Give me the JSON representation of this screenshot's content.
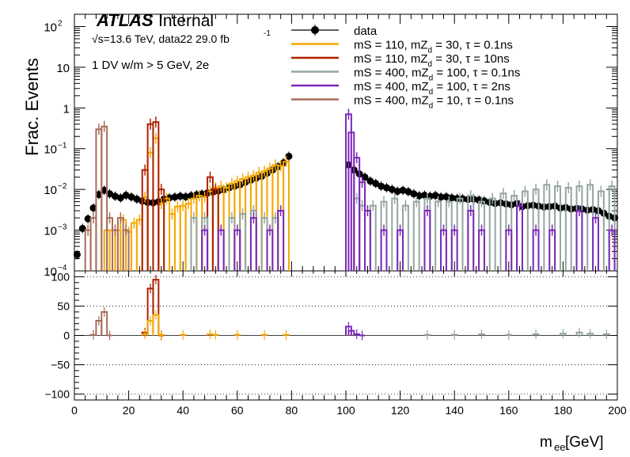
{
  "chart_data": {
    "type": "line",
    "ylabel": "Frac. Events",
    "xlabel_main": "m",
    "xlabel_sub": "ee",
    "xlabel_unit": " [GeV]",
    "xlim": [
      0,
      200
    ],
    "ylim_log": [
      0.0001,
      200
    ],
    "y_log": true,
    "ratio_ylim": [
      -110,
      110
    ],
    "x_ticks": [
      "0",
      "20",
      "40",
      "60",
      "80",
      "100",
      "120",
      "140",
      "160",
      "180",
      "200"
    ],
    "y_ticks": [
      {
        "v": 100,
        "base": "10",
        "exp": "2"
      },
      {
        "v": 10,
        "base": "10",
        "exp": ""
      },
      {
        "v": 1,
        "base": "1",
        "exp": ""
      },
      {
        "v": 0.1,
        "base": "10",
        "exp": "−1"
      },
      {
        "v": 0.01,
        "base": "10",
        "exp": "−2"
      },
      {
        "v": 0.001,
        "base": "10",
        "exp": "−3"
      },
      {
        "v": 0.0001,
        "base": "10",
        "exp": "−4"
      }
    ],
    "ratio_ticks": [
      "100",
      "50",
      "0",
      "−50",
      "−100"
    ],
    "atlas_label": "ATLAS",
    "atlas_status": " Internal",
    "energy_label": "√s=13.6 TeV, data22 29.0 fb",
    "energy_exp": "-1",
    "selection_label": "1 DV w/m > 5 GeV, 2e",
    "series": [
      {
        "name": "data",
        "color": "#000000",
        "style": "points",
        "x": [
          1,
          3,
          5,
          7,
          9,
          11,
          13,
          15,
          17,
          19,
          21,
          23,
          25,
          27,
          29,
          31,
          33,
          35,
          37,
          39,
          41,
          43,
          45,
          47,
          49,
          51,
          53,
          55,
          57,
          59,
          61,
          63,
          65,
          67,
          69,
          71,
          73,
          75,
          77,
          79,
          101,
          103,
          105,
          107,
          109,
          111,
          113,
          115,
          117,
          119,
          121,
          123,
          125,
          127,
          129,
          131,
          133,
          135,
          137,
          139,
          141,
          143,
          145,
          147,
          149,
          151,
          153,
          155,
          157,
          159,
          161,
          163,
          165,
          167,
          169,
          171,
          173,
          175,
          177,
          179,
          181,
          183,
          185,
          187,
          189,
          191,
          193,
          195,
          197,
          199
        ],
        "y": [
          0.00025,
          0.0011,
          0.0019,
          0.0035,
          0.0075,
          0.0095,
          0.0078,
          0.0068,
          0.0062,
          0.0072,
          0.0065,
          0.0058,
          0.0052,
          0.0048,
          0.0047,
          0.005,
          0.0058,
          0.0062,
          0.0065,
          0.0068,
          0.0066,
          0.007,
          0.0074,
          0.0077,
          0.0082,
          0.0087,
          0.0092,
          0.0098,
          0.011,
          0.012,
          0.013,
          0.015,
          0.017,
          0.019,
          0.021,
          0.025,
          0.03,
          0.036,
          0.045,
          0.065,
          0.04,
          0.03,
          0.024,
          0.02,
          0.016,
          0.014,
          0.012,
          0.011,
          0.01,
          0.009,
          0.0095,
          0.0088,
          0.0078,
          0.007,
          0.0072,
          0.0068,
          0.0071,
          0.0065,
          0.0066,
          0.0062,
          0.006,
          0.0059,
          0.0057,
          0.0058,
          0.0055,
          0.0052,
          0.0048,
          0.0045,
          0.0047,
          0.0044,
          0.0042,
          0.0045,
          0.0038,
          0.004,
          0.0041,
          0.0039,
          0.0037,
          0.0038,
          0.0039,
          0.0035,
          0.0036,
          0.0033,
          0.0034,
          0.0033,
          0.0031,
          0.0032,
          0.003,
          0.0026,
          0.0022,
          0.002
        ]
      },
      {
        "name": "mS = 110, mZd = 30, τ = 0.1ns",
        "color": "#f5a800",
        "style": "step",
        "x": [
          12,
          14,
          16,
          18,
          20,
          22,
          24,
          26,
          28,
          30,
          32,
          34,
          36,
          38,
          40,
          42,
          44,
          46,
          48,
          50,
          52,
          54,
          56,
          58,
          60,
          62,
          64,
          66,
          68,
          70,
          72,
          74,
          76,
          78
        ],
        "y": [
          0.001,
          0.001,
          0.001,
          0.0018,
          0.0009,
          0.0015,
          0.0018,
          0.0065,
          0.08,
          0.18,
          0.0045,
          0.006,
          0.0025,
          0.0038,
          0.004,
          0.0045,
          0.006,
          0.007,
          0.0065,
          0.009,
          0.011,
          0.012,
          0.011,
          0.014,
          0.016,
          0.018,
          0.02,
          0.022,
          0.026,
          0.028,
          0.033,
          0.04,
          0.038,
          0.048
        ]
      },
      {
        "name": "mS = 110, mZd = 30, τ = 10ns",
        "color": "#b02000",
        "style": "step",
        "x": [
          26,
          28,
          30,
          32,
          50,
          52
        ],
        "y": [
          0.03,
          0.4,
          0.45,
          0.01,
          0.02,
          0.01
        ]
      },
      {
        "name": "mS = 400, mZd = 100, τ = 0.1ns",
        "color": "#94a5a0",
        "style": "step",
        "x": [
          44,
          48,
          54,
          58,
          62,
          66,
          70,
          74,
          104,
          106,
          108,
          110,
          114,
          118,
          122,
          126,
          130,
          134,
          138,
          142,
          146,
          150,
          154,
          158,
          162,
          166,
          170,
          174,
          178,
          182,
          186,
          190,
          194,
          198
        ],
        "y": [
          0.002,
          0.002,
          0.001,
          0.002,
          0.0025,
          0.003,
          0.002,
          0.002,
          0.006,
          0.004,
          0.003,
          0.004,
          0.005,
          0.006,
          0.004,
          0.005,
          0.006,
          0.005,
          0.005,
          0.006,
          0.007,
          0.005,
          0.006,
          0.008,
          0.007,
          0.009,
          0.01,
          0.013,
          0.012,
          0.011,
          0.012,
          0.013,
          0.009,
          0.012
        ]
      },
      {
        "name": "mS = 400, mZd = 100, τ = 2ns",
        "color": "#7c28b8",
        "style": "step",
        "x": [
          48,
          54,
          60,
          66,
          72,
          76,
          101,
          102,
          104,
          106,
          108,
          114,
          120,
          130,
          136,
          140,
          146,
          150,
          160,
          164,
          170,
          176,
          186,
          192,
          198
        ],
        "y": [
          0.001,
          0.001,
          0.001,
          0.002,
          0.001,
          0.003,
          0.7,
          0.25,
          0.06,
          0.015,
          0.003,
          0.001,
          0.001,
          0.003,
          0.001,
          0.001,
          0.003,
          0.001,
          0.001,
          0.004,
          0.001,
          0.001,
          0.003,
          0.002,
          0.001
        ]
      },
      {
        "name": "mS = 400, mZd = 10, τ = 0.1ns",
        "color": "#a86d5a",
        "style": "step",
        "x": [
          5,
          7,
          9,
          11,
          13,
          15,
          17,
          19
        ],
        "y": [
          0.001,
          0.002,
          0.3,
          0.35,
          0.002,
          0.001,
          0.002,
          0.001
        ]
      }
    ],
    "legend": [
      {
        "label": "data",
        "sub": ""
      },
      {
        "label": "mS = 110, mZ",
        "sub": "d",
        "rest": " = 30, τ = 0.1ns"
      },
      {
        "label": "mS = 110, mZ",
        "sub": "d",
        "rest": " = 30, τ = 10ns"
      },
      {
        "label": "mS = 400, mZ",
        "sub": "d",
        "rest": " = 100, τ = 0.1ns"
      },
      {
        "label": "mS = 400, mZ",
        "sub": "d",
        "rest": " = 100, τ = 2ns"
      },
      {
        "label": "mS = 400, mZ",
        "sub": "d",
        "rest": " = 10, τ = 0.1ns"
      }
    ],
    "ratio_series": [
      {
        "color": "#b02000",
        "x": [
          26,
          28,
          30,
          32
        ],
        "y": [
          5,
          80,
          95,
          0
        ]
      },
      {
        "color": "#f5a800",
        "x": [
          26,
          28,
          30,
          32,
          40,
          50,
          52,
          60,
          70,
          78
        ],
        "y": [
          2,
          25,
          35,
          1,
          1,
          2,
          1,
          1,
          1,
          1
        ]
      },
      {
        "color": "#a86d5a",
        "x": [
          7,
          9,
          11,
          13
        ],
        "y": [
          1,
          25,
          40,
          0
        ]
      },
      {
        "color": "#7c28b8",
        "x": [
          101,
          102,
          104,
          106
        ],
        "y": [
          15,
          8,
          2,
          0
        ]
      },
      {
        "color": "#94a5a0",
        "x": [
          130,
          140,
          150,
          160,
          170,
          180,
          186,
          190,
          196
        ],
        "y": [
          1,
          1,
          2,
          1,
          2,
          3,
          5,
          3,
          2
        ]
      }
    ]
  }
}
